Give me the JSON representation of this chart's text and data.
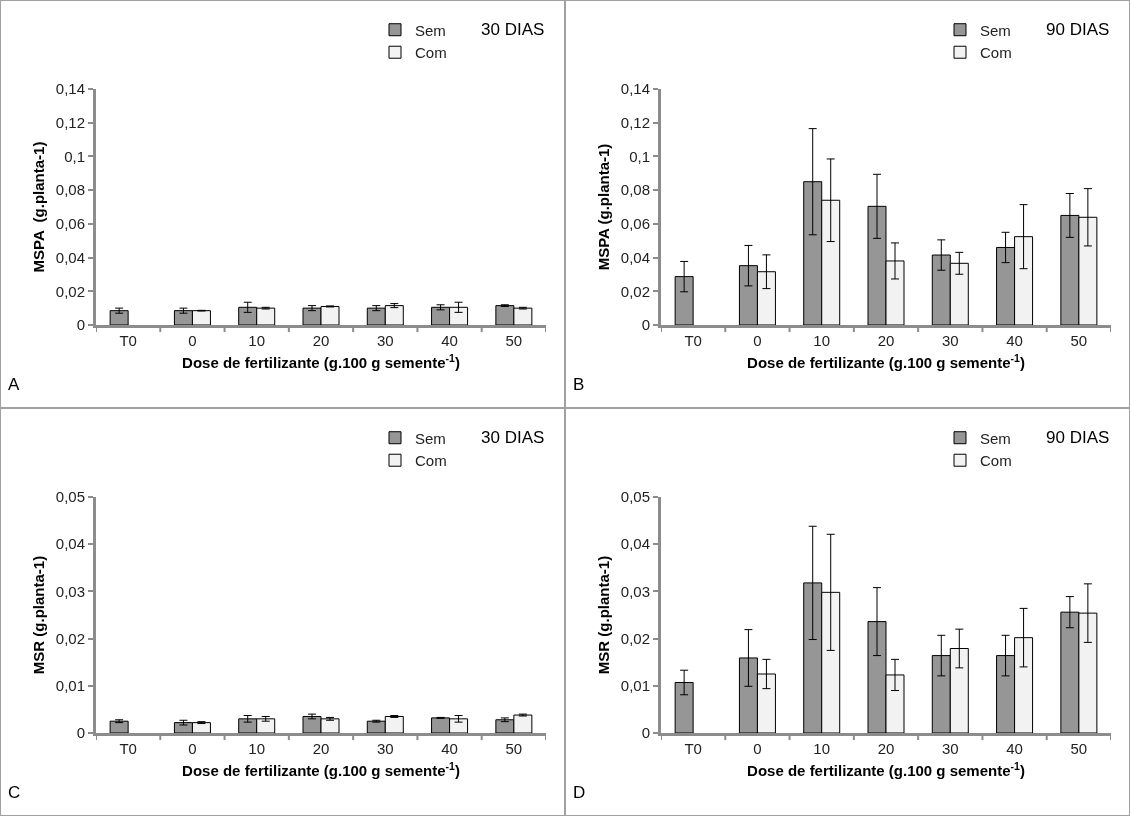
{
  "chart_data": [
    {
      "type": "bar",
      "categories": [
        "T0",
        "0",
        "10",
        "20",
        "30",
        "40",
        "50"
      ],
      "xlabel": "Dose de fertilizante (g.100 g semente$^{-1}$)",
      "ylabel": "MSPA  (g.planta-1)",
      "annotations": [
        "30 DIAS",
        "A"
      ],
      "ylim": [
        0,
        0.14
      ],
      "yticks": [
        {
          "value": 0,
          "label": "0"
        },
        {
          "value": 0.02,
          "label": "0,02"
        },
        {
          "value": 0.04,
          "label": "0,04"
        },
        {
          "value": 0.06,
          "label": "0,06"
        },
        {
          "value": 0.08,
          "label": "0,08"
        },
        {
          "value": 0.1,
          "label": "0,1"
        },
        {
          "value": 0.12,
          "label": "0,12"
        },
        {
          "value": 0.14,
          "label": "0,14"
        }
      ],
      "grid": false,
      "legend": "top right",
      "series": [
        {
          "name": "Sem",
          "color": "#969696",
          "values": [
            0.0085,
            0.0085,
            0.0105,
            0.01,
            0.01,
            0.0105,
            0.0115
          ],
          "errors": [
            0.0015,
            0.0015,
            0.003,
            0.0015,
            0.0015,
            0.0015,
            0.0005
          ]
        },
        {
          "name": "Com",
          "color": "#f2f2f2",
          "values": [
            null,
            0.0085,
            0.01,
            0.011,
            0.0115,
            0.0105,
            0.01
          ],
          "errors": [
            null,
            0.0002,
            0.0005,
            0.0003,
            0.0012,
            0.003,
            0.0005
          ]
        }
      ]
    },
    {
      "type": "bar",
      "categories": [
        "T0",
        "0",
        "10",
        "20",
        "30",
        "40",
        "50"
      ],
      "xlabel": "Dose de fertilizante (g.100 g semente$^{-1}$)",
      "ylabel": "MSPA (g.planta-1)",
      "annotations": [
        "90 DIAS",
        "B"
      ],
      "ylim": [
        0,
        0.14
      ],
      "yticks": [
        {
          "value": 0,
          "label": "0"
        },
        {
          "value": 0.02,
          "label": "0,02"
        },
        {
          "value": 0.04,
          "label": "0,04"
        },
        {
          "value": 0.06,
          "label": "0,06"
        },
        {
          "value": 0.08,
          "label": "0,08"
        },
        {
          "value": 0.1,
          "label": "0,1"
        },
        {
          "value": 0.12,
          "label": "0,12"
        },
        {
          "value": 0.14,
          "label": "0,14"
        }
      ],
      "grid": false,
      "legend": "top right",
      "series": [
        {
          "name": "Sem",
          "color": "#969696",
          "values": [
            0.0287,
            0.0352,
            0.085,
            0.0704,
            0.0415,
            0.046,
            0.065
          ],
          "errors": [
            0.009,
            0.012,
            0.0315,
            0.019,
            0.009,
            0.009,
            0.013
          ]
        },
        {
          "name": "Com",
          "color": "#f2f2f2",
          "values": [
            null,
            0.0316,
            0.074,
            0.038,
            0.0366,
            0.0524,
            0.0639
          ],
          "errors": [
            null,
            0.01,
            0.0245,
            0.0107,
            0.0065,
            0.019,
            0.017
          ]
        }
      ]
    },
    {
      "type": "bar",
      "categories": [
        "T0",
        "0",
        "10",
        "20",
        "30",
        "40",
        "50"
      ],
      "xlabel": "Dose de fertilizante (g.100 g semente$^{-1}$)",
      "ylabel": "MSR (g.planta-1)",
      "annotations": [
        "30 DIAS",
        "C"
      ],
      "ylim": [
        0,
        0.05
      ],
      "yticks": [
        {
          "value": 0,
          "label": "0"
        },
        {
          "value": 0.01,
          "label": "0,01"
        },
        {
          "value": 0.02,
          "label": "0,02"
        },
        {
          "value": 0.03,
          "label": "0,03"
        },
        {
          "value": 0.04,
          "label": "0,04"
        },
        {
          "value": 0.05,
          "label": "0,05"
        }
      ],
      "grid": false,
      "legend": "top right",
      "series": [
        {
          "name": "Sem",
          "color": "#969696",
          "values": [
            0.0025,
            0.0022,
            0.003,
            0.0035,
            0.0025,
            0.0032,
            0.0028
          ],
          "errors": [
            0.0003,
            0.0005,
            0.0007,
            0.0005,
            0.0002,
            0.0001,
            0.0004
          ]
        },
        {
          "name": "Com",
          "color": "#f2f2f2",
          "values": [
            null,
            0.0022,
            0.003,
            0.003,
            0.0035,
            0.003,
            0.0038
          ],
          "errors": [
            null,
            0.0002,
            0.0005,
            0.0003,
            0.0002,
            0.0007,
            0.0002
          ]
        }
      ]
    },
    {
      "type": "bar",
      "categories": [
        "T0",
        "0",
        "10",
        "20",
        "30",
        "40",
        "50"
      ],
      "xlabel": "Dose de fertilizante (g.100 g semente$^{-1}$)",
      "ylabel": "MSR (g.planta-1)",
      "annotations": [
        "90 DIAS",
        "D"
      ],
      "ylim": [
        0,
        0.05
      ],
      "yticks": [
        {
          "value": 0,
          "label": "0"
        },
        {
          "value": 0.01,
          "label": "0,01"
        },
        {
          "value": 0.02,
          "label": "0,02"
        },
        {
          "value": 0.03,
          "label": "0,03"
        },
        {
          "value": 0.04,
          "label": "0,04"
        },
        {
          "value": 0.05,
          "label": "0,05"
        }
      ],
      "grid": false,
      "legend": "top right",
      "series": [
        {
          "name": "Sem",
          "color": "#969696",
          "values": [
            0.0107,
            0.0159,
            0.0318,
            0.0236,
            0.0164,
            0.0164,
            0.0256
          ],
          "errors": [
            0.0026,
            0.006,
            0.012,
            0.0072,
            0.0043,
            0.0043,
            0.0033
          ]
        },
        {
          "name": "Com",
          "color": "#f2f2f2",
          "values": [
            null,
            0.0125,
            0.0298,
            0.0123,
            0.0179,
            0.0202,
            0.0254
          ],
          "errors": [
            null,
            0.0031,
            0.0123,
            0.0033,
            0.0041,
            0.0062,
            0.0062
          ]
        }
      ]
    }
  ]
}
